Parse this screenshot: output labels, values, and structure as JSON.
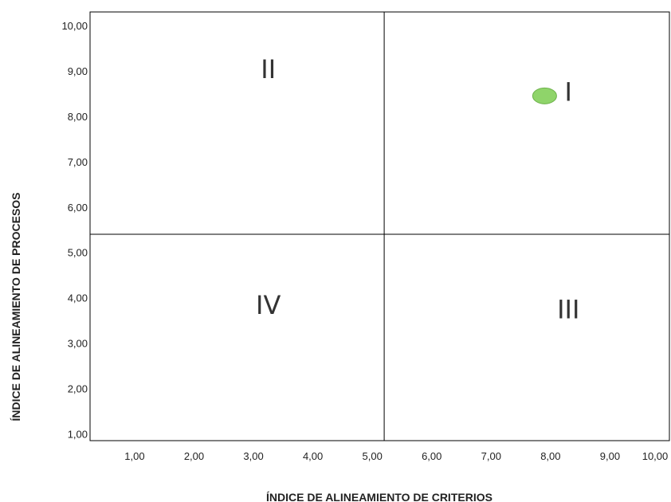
{
  "chart_data": {
    "type": "scatter",
    "title": "",
    "xlabel": "ÍNDICE DE ALINEAMIENTO DE CRITERIOS",
    "ylabel": "ÍNDICE DE ALINEAMIENTO DE PROCESOS",
    "xlim": [
      0.25,
      10.0
    ],
    "ylim": [
      0.85,
      10.3
    ],
    "xticks": [
      "1,00",
      "2,00",
      "3,00",
      "4,00",
      "5,00",
      "6,00",
      "7,00",
      "8,00",
      "9,00",
      "10,00"
    ],
    "yticks": [
      "1,00",
      "2,00",
      "3,00",
      "4,00",
      "5,00",
      "6,00",
      "7,00",
      "8,00",
      "9,00",
      "10,00"
    ],
    "reference_lines": {
      "x": 5.2,
      "y": 5.4
    },
    "quadrants": [
      {
        "label": "I",
        "x": 8.3,
        "y": 8.5
      },
      {
        "label": "II",
        "x": 3.25,
        "y": 9.0
      },
      {
        "label": "III",
        "x": 8.3,
        "y": 3.7
      },
      {
        "label": "IV",
        "x": 3.25,
        "y": 3.8
      }
    ],
    "points": [
      {
        "x": 7.9,
        "y": 8.45
      }
    ],
    "point_color": "#8fd46a",
    "point_stroke": "#6cb14a",
    "grid": false,
    "legend": "none"
  }
}
